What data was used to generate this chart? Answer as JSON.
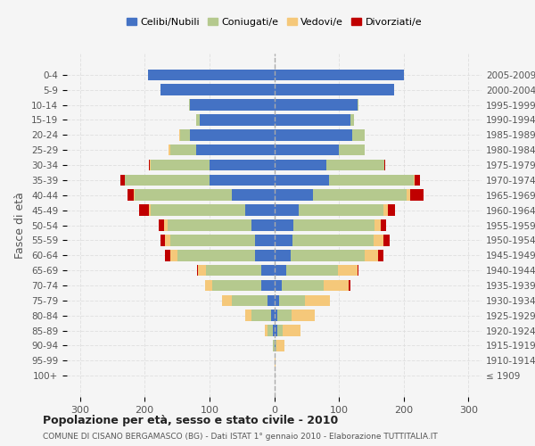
{
  "age_groups": [
    "100+",
    "95-99",
    "90-94",
    "85-89",
    "80-84",
    "75-79",
    "70-74",
    "65-69",
    "60-64",
    "55-59",
    "50-54",
    "45-49",
    "40-44",
    "35-39",
    "30-34",
    "25-29",
    "20-24",
    "15-19",
    "10-14",
    "5-9",
    "0-4"
  ],
  "birth_years": [
    "≤ 1909",
    "1910-1914",
    "1915-1919",
    "1920-1924",
    "1925-1929",
    "1930-1934",
    "1935-1939",
    "1940-1944",
    "1945-1949",
    "1950-1954",
    "1955-1959",
    "1960-1964",
    "1965-1969",
    "1970-1974",
    "1975-1979",
    "1980-1984",
    "1985-1989",
    "1990-1994",
    "1995-1999",
    "2000-2004",
    "2005-2009"
  ],
  "colors": {
    "celibi": "#4472C4",
    "coniugati": "#B5C98E",
    "vedovi": "#F5C87A",
    "divorziati": "#C00000"
  },
  "males": {
    "celibi": [
      0,
      0,
      0,
      2,
      5,
      10,
      20,
      20,
      30,
      30,
      35,
      45,
      65,
      100,
      100,
      120,
      130,
      115,
      130,
      175,
      195
    ],
    "coniugati": [
      0,
      0,
      2,
      8,
      30,
      55,
      75,
      85,
      120,
      130,
      130,
      145,
      150,
      130,
      90,
      40,
      15,
      5,
      2,
      0,
      0
    ],
    "vedovi": [
      0,
      0,
      0,
      5,
      10,
      15,
      12,
      12,
      10,
      8,
      5,
      3,
      2,
      0,
      2,
      3,
      2,
      0,
      0,
      0,
      0
    ],
    "divorziati": [
      0,
      0,
      0,
      0,
      0,
      0,
      0,
      2,
      8,
      8,
      8,
      15,
      10,
      8,
      2,
      0,
      0,
      0,
      0,
      0,
      0
    ]
  },
  "females": {
    "celibi": [
      0,
      0,
      2,
      5,
      5,
      8,
      12,
      18,
      25,
      28,
      30,
      38,
      60,
      85,
      80,
      100,
      120,
      118,
      128,
      185,
      200
    ],
    "coniugati": [
      0,
      0,
      2,
      8,
      22,
      40,
      65,
      80,
      115,
      125,
      125,
      130,
      145,
      130,
      90,
      40,
      20,
      5,
      2,
      0,
      0
    ],
    "vedovi": [
      0,
      2,
      12,
      28,
      35,
      38,
      38,
      30,
      20,
      15,
      10,
      8,
      5,
      2,
      0,
      0,
      0,
      0,
      0,
      0,
      0
    ],
    "divorziati": [
      0,
      0,
      0,
      0,
      0,
      0,
      2,
      2,
      8,
      10,
      8,
      10,
      20,
      8,
      2,
      0,
      0,
      0,
      0,
      0,
      0
    ]
  },
  "xlim": 320,
  "title": "Popolazione per età, sesso e stato civile - 2010",
  "subtitle": "COMUNE DI CISANO BERGAMASCO (BG) - Dati ISTAT 1° gennaio 2010 - Elaborazione TUTTITALIA.IT",
  "ylabel_left": "Fasce di età",
  "legend_labels": [
    "Celibi/Nubili",
    "Coniugati/e",
    "Vedovi/e",
    "Divorziati/e"
  ],
  "background_color": "#f5f5f5",
  "grid_color": "#dddddd"
}
